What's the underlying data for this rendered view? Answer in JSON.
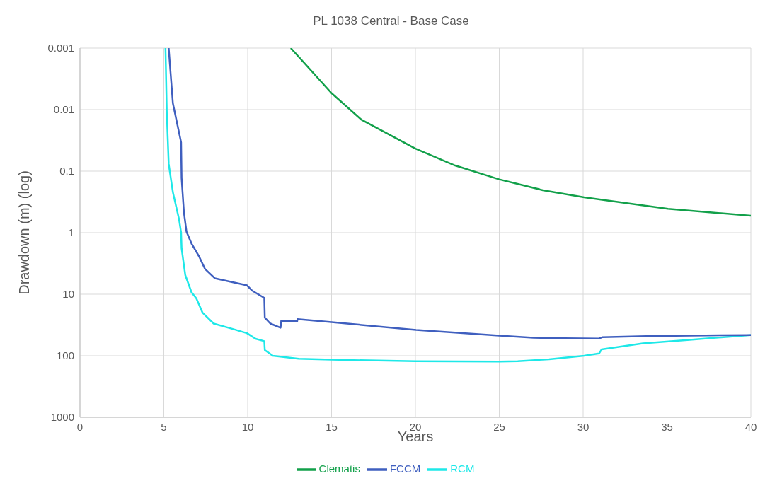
{
  "chart_data": {
    "type": "line",
    "title": "PL 1038 Central - Base Case",
    "xlabel": "Years",
    "ylabel": "Drawdown (m) (log)",
    "xlim": [
      0,
      40
    ],
    "xticks": [
      0,
      5,
      10,
      15,
      20,
      25,
      30,
      35,
      40
    ],
    "ylim": [
      1000,
      0.001
    ],
    "yticks": [
      0.001,
      0.01,
      0.1,
      1,
      10,
      100,
      1000
    ],
    "log": true,
    "grid": true,
    "legend": "bottom",
    "marker": "none",
    "line_style": "solid",
    "series": [
      {
        "name": "Clematis",
        "color": "#12a04a",
        "x": [
          12.57,
          15,
          16.77,
          20,
          22.37,
          25,
          27.6,
          30.06,
          35.06,
          40
        ],
        "values": [
          0.001,
          0.0054,
          0.0145,
          0.043,
          0.081,
          0.136,
          0.204,
          0.266,
          0.41,
          0.53
        ]
      },
      {
        "name": "RCM",
        "color": "#1ee8e8",
        "x": [
          5.1,
          5.18,
          5.29,
          5.54,
          5.91,
          6.03,
          6.06,
          6.28,
          6.65,
          6.94,
          7.31,
          7.97,
          9,
          9.96,
          10.47,
          10.99,
          11.02,
          11.5,
          13.04,
          15,
          20,
          25,
          26.1,
          27.97,
          30.06,
          30.95,
          31.1,
          33.56,
          36.36,
          40
        ],
        "values": [
          0.001,
          0.012,
          0.076,
          0.22,
          0.61,
          1,
          1.8,
          4.9,
          9.3,
          11.7,
          20,
          30,
          36,
          43,
          53,
          58,
          81,
          100,
          112,
          116,
          123,
          124,
          123,
          114,
          100,
          92,
          79,
          63,
          55,
          46
        ]
      },
      {
        "name": "FCCM",
        "color": "#3f5fbf",
        "x": [
          5.29,
          5.54,
          6.03,
          6.06,
          6.2,
          6.35,
          6.65,
          7.09,
          7.46,
          8.04,
          9,
          9.96,
          10.25,
          10.99,
          11.02,
          11.35,
          11.96,
          12,
          12.95,
          12.97,
          15,
          20.04,
          25,
          27.03,
          28.9,
          30.95,
          31.14,
          33.75,
          36.36,
          40
        ],
        "values": [
          0.001,
          0.0079,
          0.034,
          0.13,
          0.47,
          0.96,
          1.5,
          2.4,
          3.9,
          5.5,
          6.3,
          7.2,
          8.7,
          11.5,
          24,
          30,
          35,
          27,
          27.5,
          25.5,
          28.5,
          38,
          47,
          51,
          52,
          52.5,
          50,
          48,
          47,
          46
        ]
      }
    ]
  }
}
